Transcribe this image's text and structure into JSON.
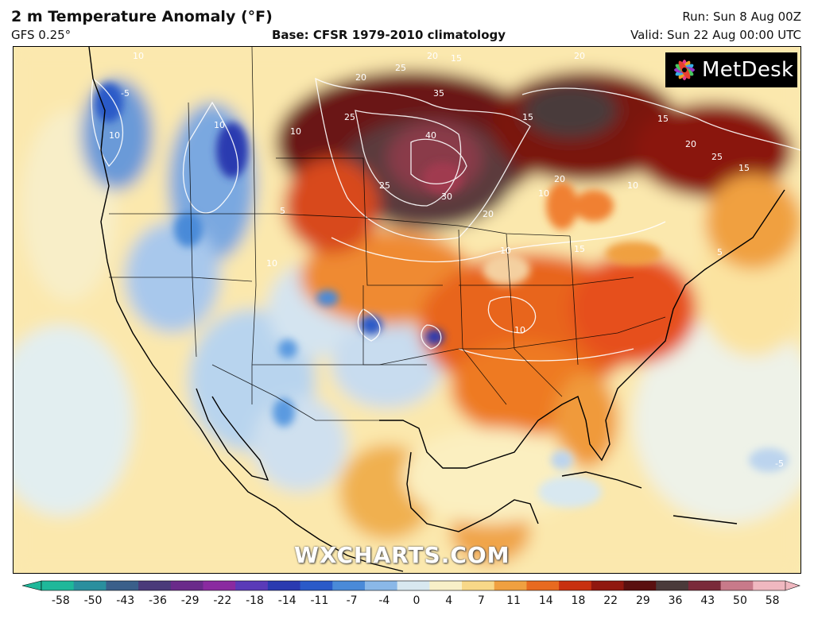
{
  "header": {
    "title": "2 m Temperature Anomaly (°F)",
    "model": "GFS 0.25°",
    "base": "Base: CFSR 1979-2010 climatology",
    "run": "Run: Sun 8 Aug 00Z",
    "valid": "Valid: Sun 22 Aug 00:00 UTC"
  },
  "logo": {
    "text": "MetDesk",
    "icon": "metdesk-flower-icon"
  },
  "watermark": "WXCHARTS.COM",
  "colorbar": {
    "ticks": [
      "-58",
      "-50",
      "-43",
      "-36",
      "-29",
      "-22",
      "-18",
      "-14",
      "-11",
      "-7",
      "-4",
      "0",
      "4",
      "7",
      "11",
      "14",
      "18",
      "22",
      "29",
      "36",
      "43",
      "50",
      "58"
    ],
    "colors": [
      "#1fb89a",
      "#2a8f9e",
      "#3a5f8a",
      "#4a3a7a",
      "#6a2a8a",
      "#8a2aa0",
      "#5a3ab8",
      "#2a3ab0",
      "#2a5ac8",
      "#4a8ad8",
      "#8ab8e8",
      "#d8e8f0",
      "#f8f0c8",
      "#f8d888",
      "#f0a040",
      "#e86a20",
      "#c83010",
      "#901810",
      "#5a1010",
      "#4a3a3a",
      "#7a2a3a",
      "#c87a8a",
      "#f0b8c0"
    ]
  },
  "map": {
    "contour_labels": [
      {
        "text": "10"
      },
      {
        "text": "-5"
      },
      {
        "text": "10"
      },
      {
        "text": "10"
      },
      {
        "text": "10"
      },
      {
        "text": "20"
      },
      {
        "text": "25"
      },
      {
        "text": "20"
      },
      {
        "text": "25"
      },
      {
        "text": "15"
      },
      {
        "text": "35"
      },
      {
        "text": "40"
      },
      {
        "text": "30"
      },
      {
        "text": "25"
      },
      {
        "text": "20"
      },
      {
        "text": "15"
      },
      {
        "text": "20"
      },
      {
        "text": "20"
      },
      {
        "text": "10"
      },
      {
        "text": "10"
      },
      {
        "text": "15"
      },
      {
        "text": "10"
      },
      {
        "text": "15"
      },
      {
        "text": "10"
      },
      {
        "text": "10"
      },
      {
        "text": "5"
      },
      {
        "text": "5"
      },
      {
        "text": "-5"
      },
      {
        "text": "20"
      },
      {
        "text": "25"
      },
      {
        "text": "15"
      }
    ]
  }
}
